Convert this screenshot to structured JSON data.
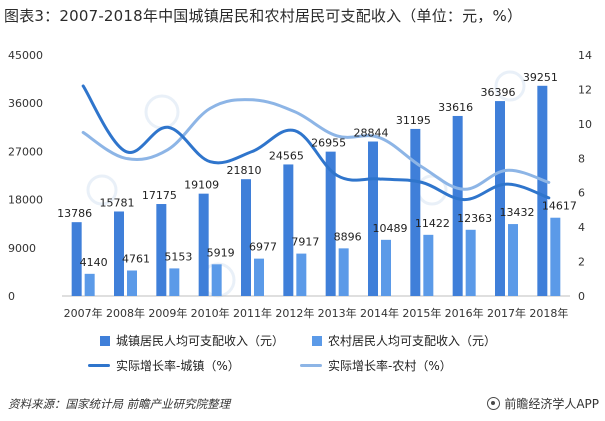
{
  "title": "图表3：2007-2018年中国城镇居民和农村居民可支配收入（单位：元，%）",
  "source": "资料来源：国家统计局 前瞻产业研究院整理",
  "brand": "前瞻经济学人APP",
  "colors": {
    "urban_bar": "#3f7fd9",
    "rural_bar": "#5b9ae8",
    "urban_line": "#2f75cc",
    "rural_line": "#8db5e6"
  },
  "chart_data": {
    "type": "bar",
    "categories": [
      "2007年",
      "2008年",
      "2009年",
      "2010年",
      "2011年",
      "2012年",
      "2013年",
      "2014年",
      "2015年",
      "2016年",
      "2017年",
      "2018年"
    ],
    "y_left": {
      "ticks": [
        "0",
        "9000",
        "18000",
        "27000",
        "36000",
        "45000"
      ],
      "ylim": [
        0,
        45000
      ]
    },
    "y_right": {
      "ticks": [
        "0",
        "2",
        "4",
        "6",
        "8",
        "10",
        "12",
        "14"
      ],
      "ylim": [
        0,
        14
      ]
    },
    "series": [
      {
        "name": "城镇居民人均可支配收入（元）",
        "type": "bar",
        "axis": "left",
        "values": [
          13786,
          15781,
          17175,
          19109,
          21810,
          24565,
          26955,
          28844,
          31195,
          33616,
          36396,
          39251
        ],
        "labels": [
          "13786",
          "15781",
          "17175",
          "19109",
          "21810",
          "24565",
          "26955",
          "28844",
          "31195",
          "33616",
          "36396",
          "39251"
        ]
      },
      {
        "name": "农村居民人均可支配收入（元）",
        "type": "bar",
        "axis": "left",
        "values": [
          4140,
          4761,
          5153,
          5919,
          6977,
          7917,
          8896,
          10489,
          11422,
          12363,
          13432,
          14617
        ],
        "labels": [
          "4140",
          "4761",
          "5153",
          "5919",
          "6977",
          "7917",
          "8896",
          "10489",
          "11422",
          "12363",
          "13432",
          "14617"
        ]
      },
      {
        "name": "实际增长率-城镇（%）",
        "type": "line",
        "axis": "right",
        "values": [
          12.2,
          8.4,
          9.8,
          7.8,
          8.4,
          9.6,
          7.0,
          6.8,
          6.6,
          5.6,
          6.5,
          5.7
        ]
      },
      {
        "name": "实际增长率-农村（%）",
        "type": "line",
        "axis": "right",
        "values": [
          9.5,
          8.0,
          8.5,
          10.9,
          11.4,
          10.7,
          9.3,
          9.2,
          7.5,
          6.2,
          7.3,
          6.6
        ]
      }
    ],
    "legend_position": "bottom",
    "grid": false
  }
}
